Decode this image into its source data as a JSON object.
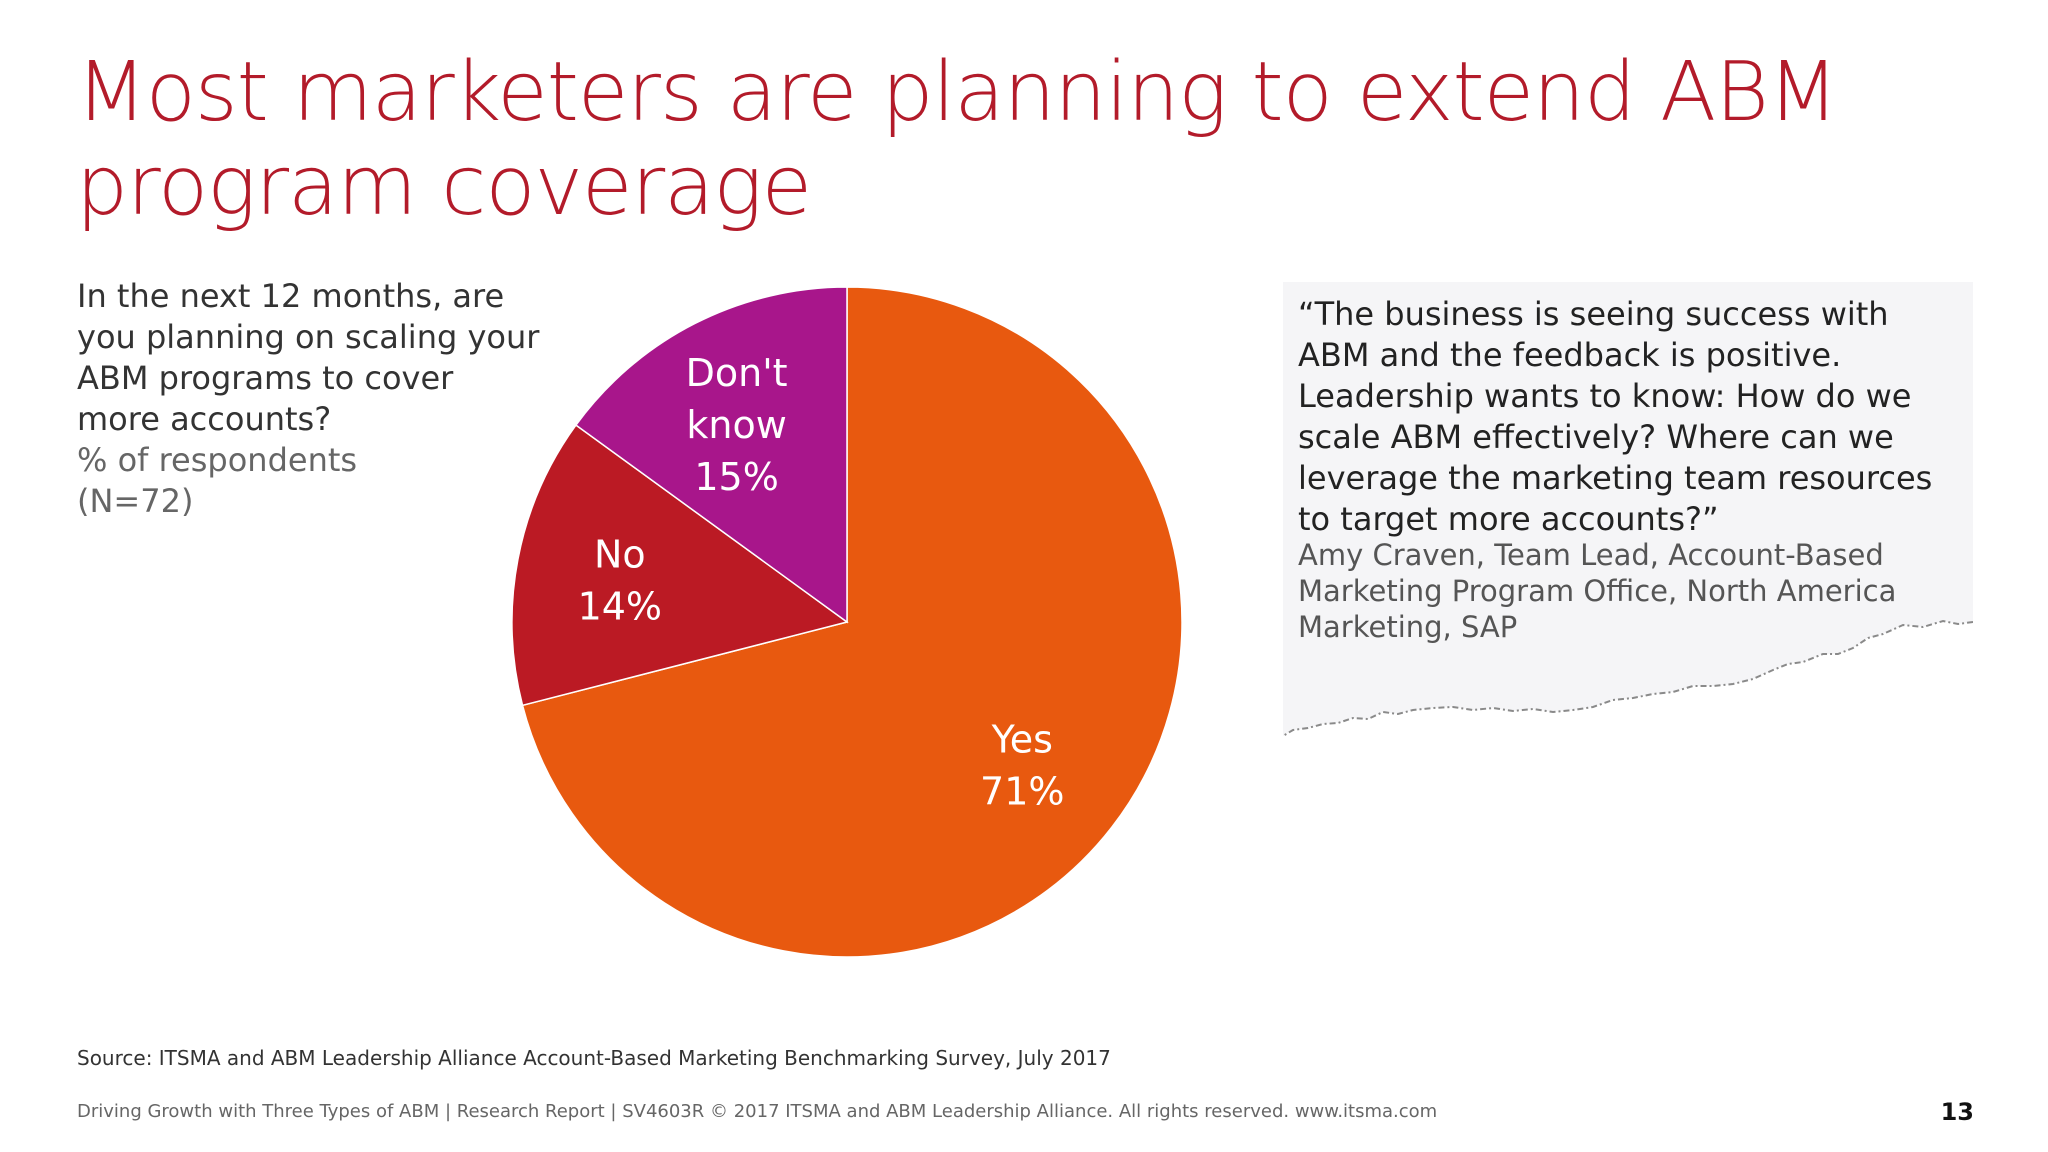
{
  "title": "Most marketers are planning to extend ABM program coverage",
  "question": {
    "lines": [
      "In the next 12 months, are",
      "you planning on scaling your",
      "ABM programs to cover",
      "more accounts?"
    ],
    "subtitle_lines": [
      "% of respondents",
      "(N=72)"
    ]
  },
  "chart_data": {
    "type": "pie",
    "start_angle": "12 o'clock, clockwise",
    "slices": [
      {
        "label": "Yes",
        "value": 71,
        "value_label": "71%",
        "color": "#e8590f"
      },
      {
        "label": "No",
        "value": 14,
        "value_label": "14%",
        "color": "#bb1a24"
      },
      {
        "label": "Don't know",
        "value": 15,
        "value_label": "15%",
        "color": "#a8168b"
      }
    ]
  },
  "quote": {
    "text": "“The business is seeing success with ABM and the feedback is positive. Leadership wants to know: How do we scale ABM effectively? Where can we leverage the marketing team resources to target more accounts?”",
    "attribution": "Amy Craven, Team Lead, Account-Based Marketing Program Office, North America Marketing, SAP",
    "background": "#f5f5f7"
  },
  "source": "Source: ITSMA and ABM Leadership Alliance Account-Based Marketing Benchmarking Survey, July 2017",
  "footer": "Driving Growth with Three Types of ABM | Research Report | SV4603R © 2017 ITSMA and ABM Leadership Alliance. All rights reserved. www.itsma.com",
  "page_number": "13",
  "colors": {
    "title": "#b31b2a",
    "text": "#333333",
    "subtext": "#666666"
  }
}
